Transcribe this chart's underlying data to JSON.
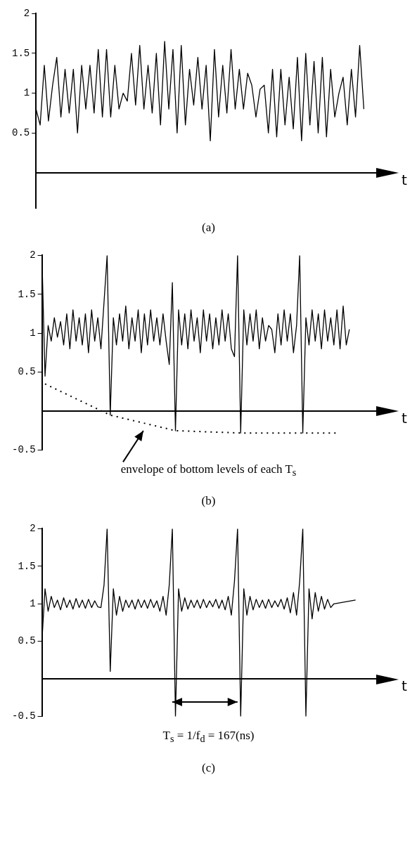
{
  "chart_data": [
    {
      "type": "line",
      "xlabel": "t",
      "categories": [
        null,
        null,
        null,
        null,
        null,
        null,
        null,
        null,
        null,
        null,
        null,
        null,
        null,
        null,
        null,
        null,
        null,
        null,
        null,
        null,
        null,
        null,
        null,
        null,
        null,
        null,
        null,
        null,
        null,
        null,
        null,
        null,
        null,
        null,
        null,
        null,
        null,
        null,
        null,
        null,
        null,
        null,
        null,
        null,
        null,
        null,
        null,
        null,
        null,
        null,
        null,
        null,
        null,
        null,
        null,
        null,
        null,
        null,
        null,
        null,
        null,
        null,
        null,
        null,
        null,
        null,
        null,
        null,
        null,
        null,
        null,
        null,
        null,
        null,
        null,
        null,
        null,
        null,
        null,
        null,
        null,
        null,
        null,
        null
      ],
      "ylim": [
        -0.45,
        2
      ],
      "yticks": [
        0.5,
        1,
        1.5,
        2
      ],
      "tick_labels": "y",
      "marker": "none",
      "annotations": [
        "(a)"
      ],
      "series": [
        {
          "color": "#000000",
          "line_style": "solid",
          "values": [
            0.8,
            0.6,
            1.35,
            0.65,
            1.1,
            1.45,
            0.7,
            1.3,
            0.75,
            1.3,
            0.5,
            1.35,
            0.8,
            1.35,
            0.75,
            1.55,
            0.7,
            1.55,
            0.7,
            1.35,
            0.8,
            1.0,
            0.9,
            1.5,
            0.85,
            1.6,
            0.8,
            1.35,
            0.75,
            1.5,
            0.6,
            1.65,
            0.8,
            1.55,
            0.5,
            1.6,
            0.6,
            1.3,
            0.85,
            1.45,
            0.8,
            1.35,
            0.4,
            1.55,
            0.7,
            1.35,
            0.75,
            1.55,
            0.8,
            1.3,
            0.8,
            1.25,
            1.1,
            0.7,
            1.05,
            1.1,
            0.5,
            1.3,
            0.45,
            1.3,
            0.6,
            1.2,
            0.55,
            1.45,
            0.4,
            1.5,
            0.6,
            1.4,
            0.5,
            1.45,
            0.45,
            1.3,
            0.7,
            1.0,
            1.2,
            0.6,
            1.3,
            0.7,
            1.6,
            0.8,
            null,
            null,
            null,
            null
          ]
        }
      ]
    },
    {
      "type": "line",
      "xlabel": "t",
      "categories": [
        null,
        null,
        null,
        null,
        null,
        null,
        null,
        null,
        null,
        null,
        null,
        null,
        null,
        null,
        null,
        null,
        null,
        null,
        null,
        null,
        null,
        null,
        null,
        null,
        null,
        null,
        null,
        null,
        null,
        null,
        null,
        null,
        null,
        null,
        null,
        null,
        null,
        null,
        null,
        null,
        null,
        null,
        null,
        null,
        null,
        null,
        null,
        null,
        null,
        null,
        null,
        null,
        null,
        null,
        null,
        null,
        null,
        null,
        null,
        null,
        null,
        null,
        null,
        null,
        null,
        null,
        null,
        null,
        null,
        null,
        null,
        null,
        null,
        null,
        null,
        null,
        null,
        null,
        null,
        null,
        null,
        null,
        null,
        null,
        null,
        null,
        null,
        null,
        null,
        null,
        null,
        null,
        null,
        null,
        null,
        null,
        null,
        null,
        null,
        null,
        null,
        null,
        null,
        null,
        null,
        null,
        null,
        null,
        null,
        null
      ],
      "ylim": [
        -0.5,
        2
      ],
      "yticks": [
        -0.5,
        0.5,
        1,
        1.5,
        2
      ],
      "tick_labels": "y",
      "marker": "none",
      "annotations": [
        "envelope of bottom levels of each T$_{s}$",
        "(b)"
      ],
      "series": [
        {
          "color": "#000000",
          "line_style": "solid",
          "values": [
            2,
            0.45,
            1.1,
            0.9,
            1.2,
            0.95,
            1.15,
            0.85,
            1.25,
            0.8,
            1.3,
            0.9,
            1.2,
            0.85,
            1.25,
            0.75,
            1.3,
            0.9,
            1.2,
            0.8,
            1.4,
            2,
            -0.05,
            1.2,
            0.85,
            1.25,
            0.9,
            1.35,
            0.8,
            1.2,
            0.9,
            1.3,
            0.75,
            1.25,
            0.85,
            1.3,
            0.9,
            1.2,
            0.85,
            1.25,
            0.9,
            0.6,
            1.65,
            -0.25,
            1.3,
            0.85,
            1.25,
            0.8,
            1.3,
            0.9,
            1.2,
            0.75,
            1.3,
            0.9,
            1.25,
            0.8,
            1.2,
            0.85,
            1.3,
            0.9,
            1.25,
            0.8,
            0.7,
            2,
            -0.28,
            1.3,
            0.85,
            1.25,
            0.9,
            1.3,
            0.8,
            1.2,
            0.9,
            1.1,
            1.05,
            0.75,
            1.25,
            0.85,
            1.3,
            0.9,
            1.25,
            0.75,
            1.1,
            2,
            -0.28,
            1.2,
            0.85,
            1.3,
            0.9,
            1.25,
            0.8,
            1.3,
            0.9,
            1.2,
            0.85,
            1.3,
            0.8,
            1.35,
            0.85,
            1.05,
            null,
            null,
            null,
            null,
            null,
            null,
            null,
            null,
            null,
            null
          ]
        },
        {
          "color": "#000000",
          "line_style": "dotted",
          "values": [
            null,
            0.35,
            null,
            null,
            null,
            null,
            null,
            null,
            null,
            null,
            null,
            null,
            null,
            null,
            null,
            null,
            null,
            null,
            null,
            null,
            null,
            null,
            -0.05,
            null,
            null,
            null,
            null,
            null,
            null,
            null,
            null,
            null,
            null,
            null,
            null,
            null,
            null,
            null,
            null,
            null,
            null,
            null,
            null,
            -0.25,
            null,
            null,
            null,
            null,
            null,
            null,
            null,
            null,
            null,
            null,
            null,
            null,
            null,
            null,
            null,
            null,
            null,
            null,
            null,
            null,
            -0.28,
            null,
            null,
            null,
            null,
            null,
            null,
            null,
            null,
            null,
            null,
            null,
            null,
            null,
            null,
            null,
            null,
            null,
            null,
            null,
            -0.28,
            null,
            null,
            null,
            null,
            null,
            null,
            null,
            null,
            null,
            null,
            -0.28,
            null,
            null,
            null,
            null,
            null,
            null,
            null,
            null,
            null,
            null,
            null,
            null,
            null,
            null
          ]
        }
      ]
    },
    {
      "type": "line",
      "xlabel": "t",
      "categories": [
        null,
        null,
        null,
        null,
        null,
        null,
        null,
        null,
        null,
        null,
        null,
        null,
        null,
        null,
        null,
        null,
        null,
        null,
        null,
        null,
        null,
        null,
        null,
        null,
        null,
        null,
        null,
        null,
        null,
        null,
        null,
        null,
        null,
        null,
        null,
        null,
        null,
        null,
        null,
        null,
        null,
        null,
        null,
        null,
        null,
        null,
        null,
        null,
        null,
        null,
        null,
        null,
        null,
        null,
        null,
        null,
        null,
        null,
        null,
        null,
        null,
        null,
        null,
        null,
        null,
        null,
        null,
        null,
        null,
        null,
        null,
        null,
        null,
        null,
        null,
        null,
        null,
        null,
        null,
        null,
        null,
        null,
        null,
        null,
        null,
        null,
        null,
        null,
        null,
        null,
        null,
        null,
        null,
        null,
        null,
        null,
        null,
        null,
        null,
        null,
        null,
        null,
        null,
        null,
        null,
        null,
        null,
        null,
        null,
        null
      ],
      "ylim": [
        -0.5,
        2
      ],
      "yticks": [
        -0.5,
        0.5,
        1,
        1.5,
        2
      ],
      "tick_labels": "y",
      "marker": "none",
      "annotations": [
        "T$_{s}$ = 1/f$_{d}$ = 167(ns)",
        "(c)"
      ],
      "series": [
        {
          "color": "#000000",
          "line_style": "solid",
          "values": [
            0.5,
            1.2,
            0.9,
            1.1,
            0.95,
            1.05,
            0.92,
            1.08,
            0.95,
            1.05,
            0.93,
            1.07,
            0.95,
            1.05,
            0.94,
            1.06,
            0.95,
            1.04,
            0.96,
            0.95,
            1.25,
            2,
            0.1,
            1.2,
            0.85,
            1.1,
            0.9,
            1.05,
            0.95,
            1.05,
            0.93,
            1.06,
            0.95,
            1.05,
            0.94,
            1.06,
            0.95,
            1.04,
            0.9,
            1.1,
            0.85,
            1.25,
            2,
            -0.5,
            1.2,
            0.9,
            1.08,
            0.93,
            1.05,
            0.95,
            1.05,
            0.94,
            1.06,
            0.95,
            1.04,
            0.96,
            1.06,
            0.94,
            1.05,
            0.92,
            1.1,
            0.85,
            1.3,
            2,
            -0.5,
            1.2,
            0.85,
            1.1,
            0.92,
            1.06,
            0.95,
            1.05,
            0.94,
            1.06,
            0.95,
            1.04,
            0.96,
            1.06,
            0.93,
            1.08,
            0.88,
            1.15,
            0.85,
            1.3,
            2,
            -0.5,
            1.2,
            0.8,
            1.15,
            0.9,
            1.1,
            0.93,
            1.06,
            0.95,
            1.0,
            null,
            null,
            null,
            null,
            null,
            null,
            1.05,
            null,
            null,
            null,
            null,
            null,
            null,
            null,
            null
          ]
        }
      ]
    }
  ]
}
